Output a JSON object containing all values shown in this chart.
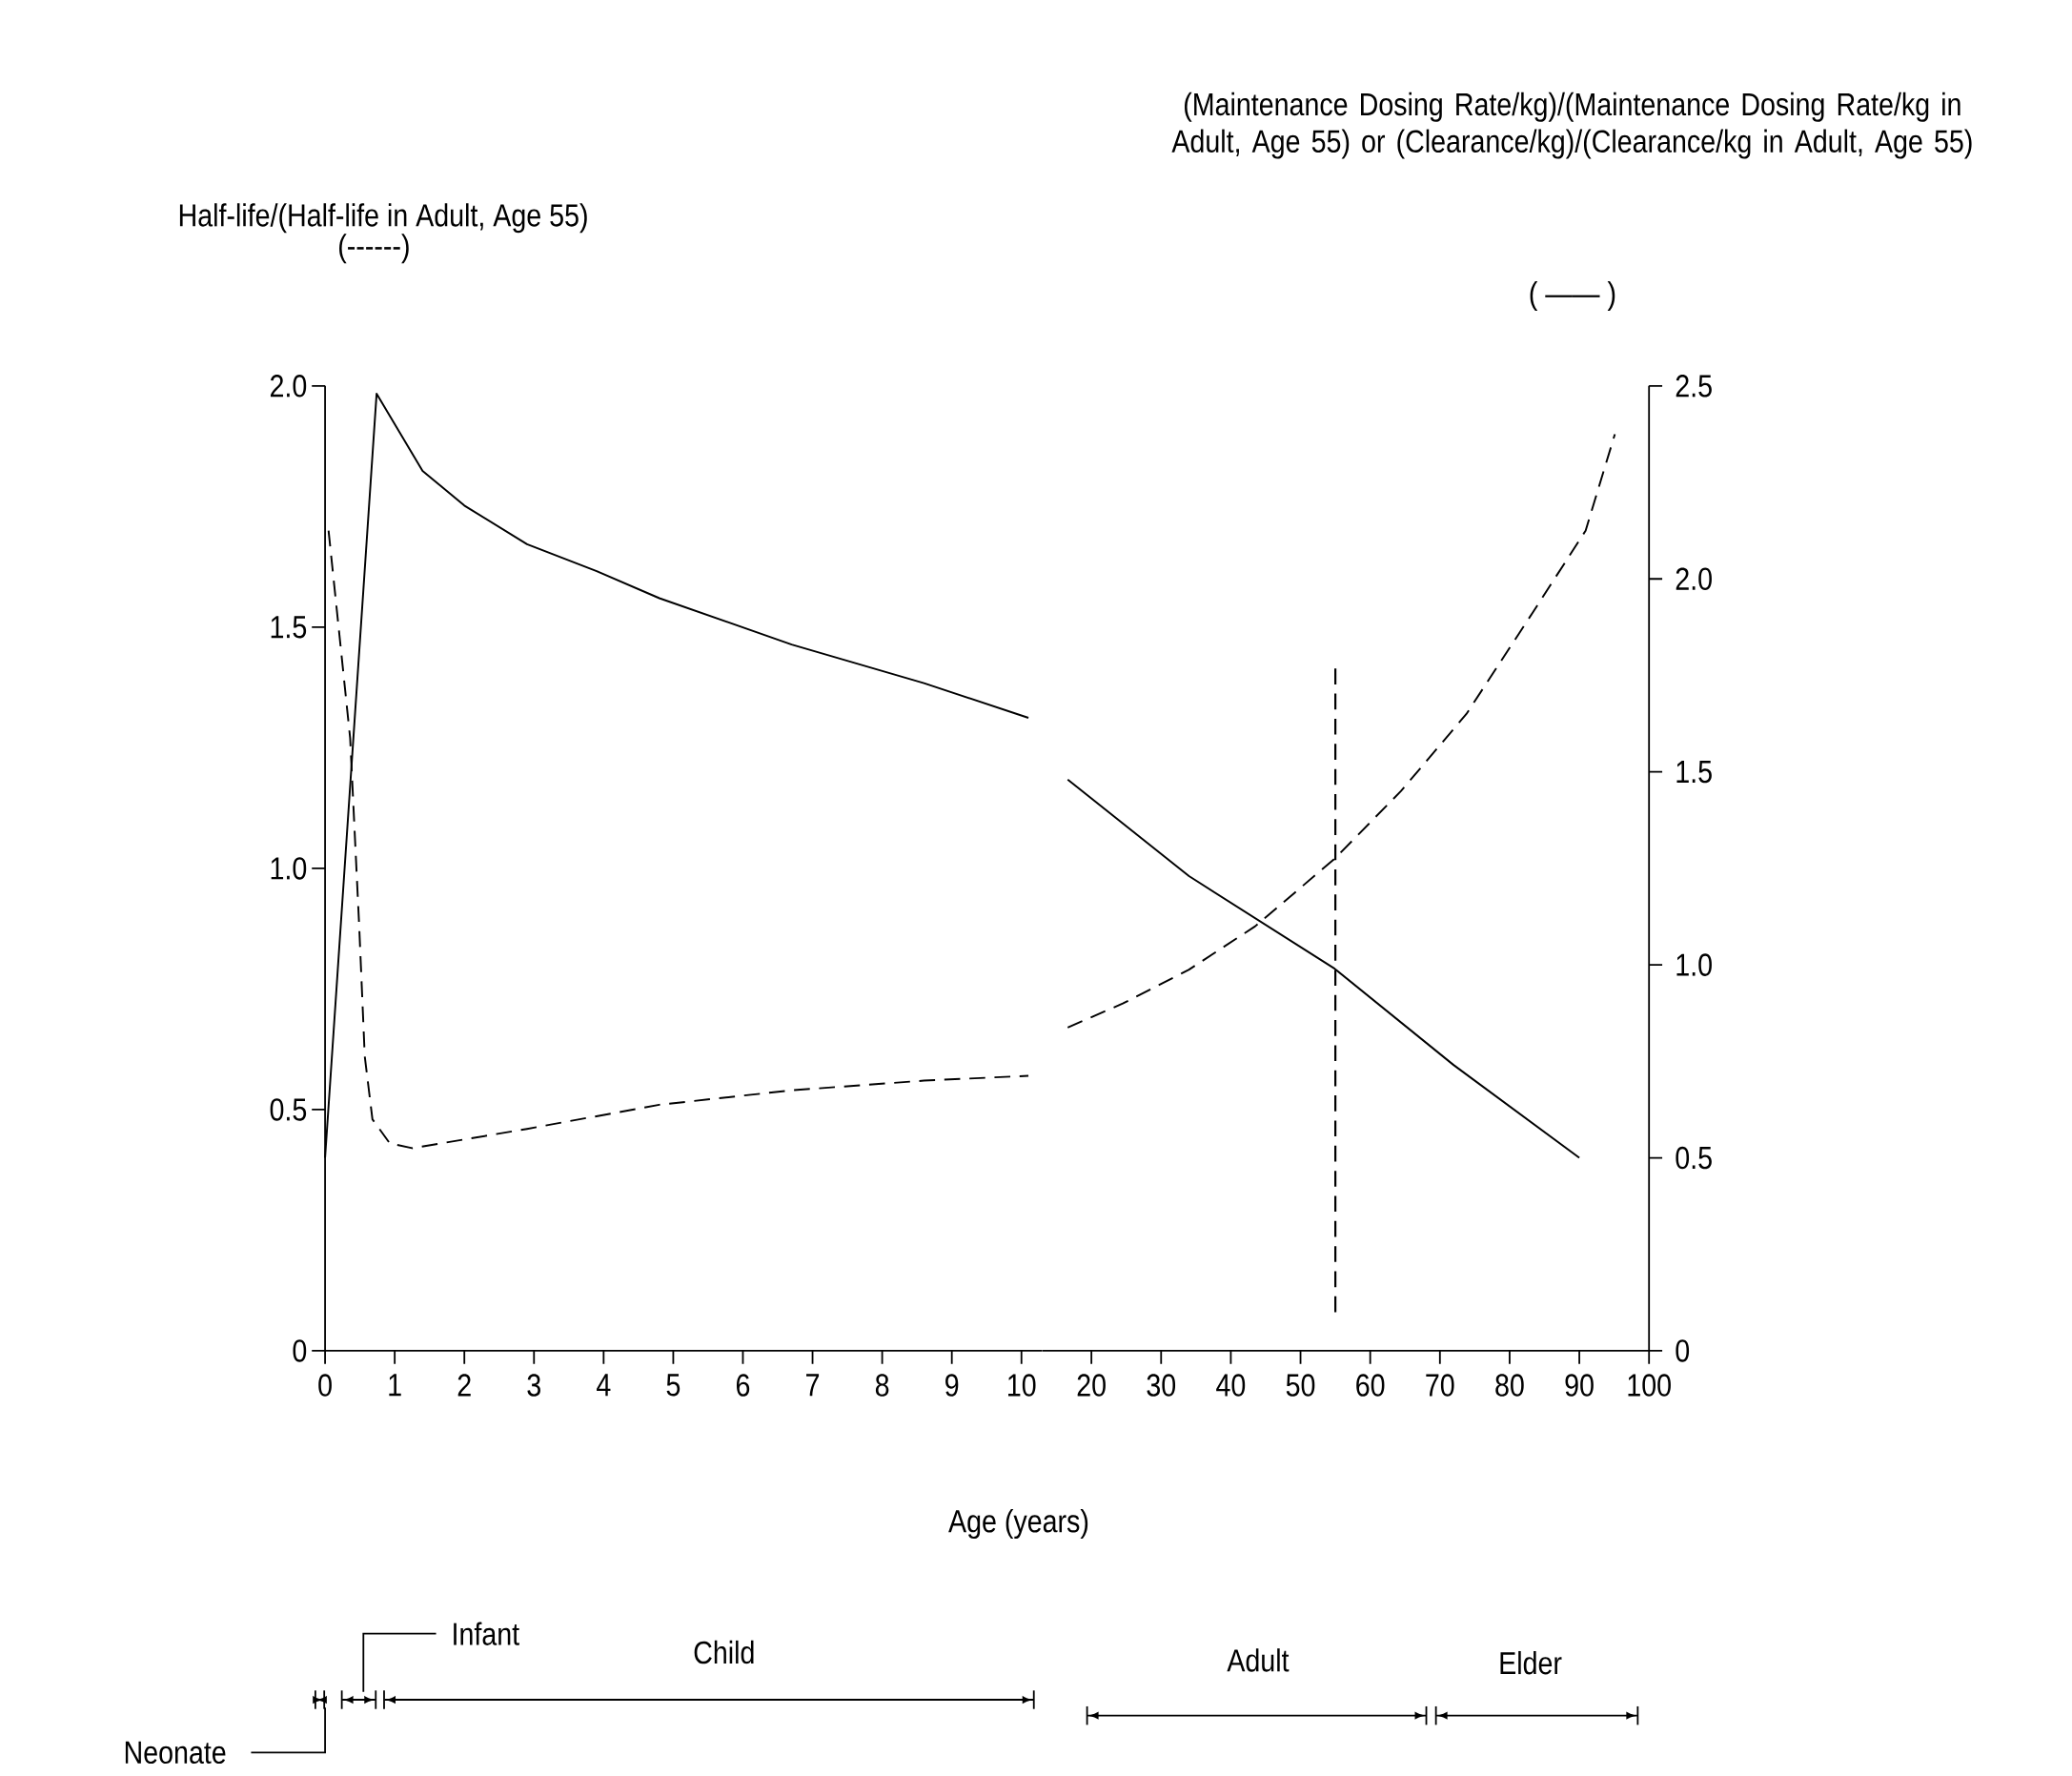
{
  "chart_data": [
    {
      "type": "line",
      "ylabel": "Half-life/(Half-life in Adult, Age 55)",
      "xlabel": "Age (years)",
      "xlim": [
        0,
        10.3
      ],
      "xticks": [
        0,
        1,
        2,
        3,
        4,
        5,
        6,
        7,
        8,
        9,
        10
      ],
      "ylim": [
        0,
        2.0
      ],
      "yticks": [
        0,
        0.5,
        {
          "value": 1,
          "label": "1.0"
        },
        1.5,
        {
          "value": 2,
          "label": "2.0"
        }
      ],
      "y2lim": [
        0,
        2.5
      ],
      "tick_labels": [
        "x",
        "y"
      ],
      "annotations": [
        "(------)",
        "Neonate",
        "Infant",
        "Child"
      ],
      "series": [
        {
          "color": "#000000",
          "line_style": "dashed",
          "axis": "y",
          "x": [
            0.05,
            0.36,
            0.49,
            0.57,
            0.68,
            0.93,
            1.25,
            2.9,
            4.8,
            6.7,
            8.6,
            10.1
          ],
          "values": [
            1.7,
            1.27,
            0.88,
            0.61,
            0.48,
            0.43,
            0.42,
            0.46,
            0.51,
            0.54,
            0.56,
            0.57
          ]
        },
        {
          "color": "#000000",
          "line_style": "solid",
          "axis": "y2",
          "x": [
            0,
            0.74,
            1.4,
            2.0,
            2.9,
            3.9,
            4.8,
            6.7,
            8.6,
            10.1
          ],
          "values": [
            0.5,
            2.48,
            2.28,
            2.19,
            2.09,
            2.02,
            1.95,
            1.83,
            1.73,
            1.64
          ]
        }
      ]
    },
    {
      "type": "line",
      "y2label": "(Maintenance Dosing Rate/kg)/(Maintenance Dosing Rate/kg in Adult, Age 55) or (Clearance/kg)/(Clearance/kg in Adult, Age 55)",
      "xlim": [
        13,
        100
      ],
      "xticks": [
        20,
        30,
        40,
        50,
        60,
        70,
        80,
        90,
        100
      ],
      "ylim": [
        0,
        2.0
      ],
      "y2lim": [
        0,
        2.5
      ],
      "y2ticks": [
        0,
        0.5,
        {
          "value": 1,
          "label": "1.0"
        },
        1.5,
        {
          "value": 2,
          "label": "2.0"
        },
        2.5
      ],
      "tick_labels": [
        "x",
        "y2"
      ],
      "annotations": [
        "( —— )",
        "Adult",
        "Elder"
      ],
      "ref_lines": [
        {
          "axis": "x",
          "value": 55,
          "line_style": "dashed",
          "color": "#000000"
        }
      ],
      "series": [
        {
          "color": "#000000",
          "line_style": "dashed",
          "axis": "y",
          "x": [
            16.6,
            24.5,
            34,
            43.5,
            54.9,
            64.4,
            73.8,
            83.3,
            90.9,
            95.1
          ],
          "values": [
            0.67,
            0.72,
            0.79,
            0.88,
            1.02,
            1.16,
            1.32,
            1.53,
            1.7,
            1.9
          ]
        },
        {
          "color": "#000000",
          "line_style": "solid",
          "axis": "y2",
          "x": [
            16.6,
            34,
            54.9,
            72,
            90
          ],
          "values": [
            1.48,
            1.23,
            0.99,
            0.74,
            0.5
          ]
        }
      ]
    }
  ]
}
